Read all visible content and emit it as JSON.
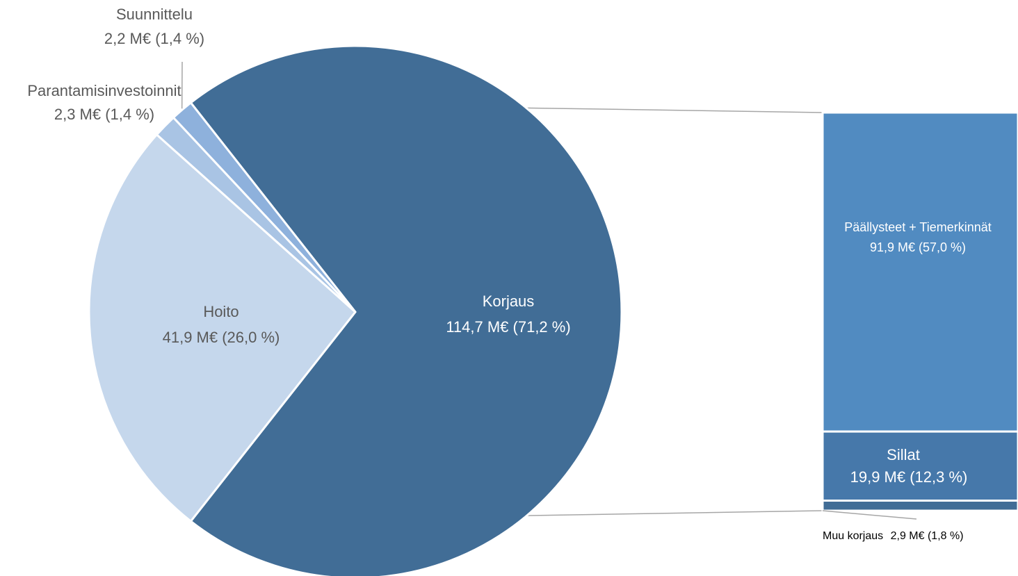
{
  "chart_data": {
    "type": "pie",
    "subtype": "bar-of-pie",
    "unit": "M€",
    "slices": [
      {
        "name": "Korjaus",
        "value": 114.7,
        "percent": 71.2,
        "value_label": "114,7 M€ (71,2 %)",
        "color": "#416d96"
      },
      {
        "name": "Hoito",
        "value": 41.9,
        "percent": 26.0,
        "value_label": "41,9 M€ (26,0 %)",
        "color": "#c5d7ec"
      },
      {
        "name": "Parantamisinvestoinnit",
        "value": 2.3,
        "percent": 1.4,
        "value_label": "2,3 M€ (1,4 %)",
        "color": "#a9c4e4"
      },
      {
        "name": "Suunnittelu",
        "value": 2.2,
        "percent": 1.4,
        "value_label": "2,2 M€ (1,4 %)",
        "color": "#8eb1dc"
      }
    ],
    "breakdown": {
      "of": "Korjaus",
      "segments": [
        {
          "name": "Päällysteet + Tiemerkinnät",
          "value": 91.9,
          "percent": 57.0,
          "value_label": "91,9 M€ (57,0 %)",
          "color": "#518bc1"
        },
        {
          "name": "Sillat",
          "value": 19.9,
          "percent": 12.3,
          "value_label": "19,9 M€ (12,3 %)",
          "color": "#4678aa"
        },
        {
          "name": "Muu korjaus",
          "value": 2.9,
          "percent": 1.8,
          "value_label": "2,9 M€ (1,8 %)",
          "color": "#416d96"
        }
      ]
    },
    "legend": "none",
    "grid": false
  }
}
